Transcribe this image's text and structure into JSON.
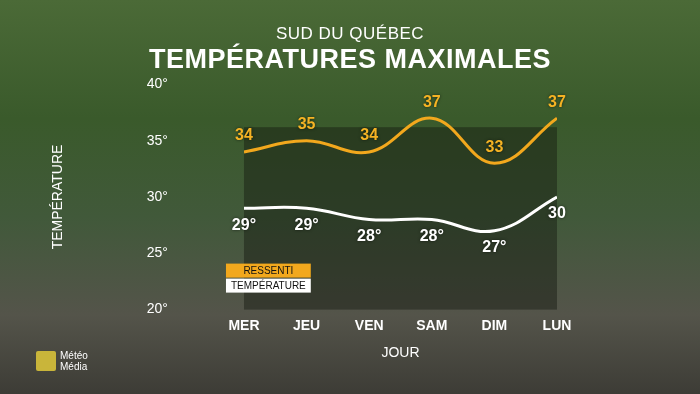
{
  "chart_data": {
    "type": "line",
    "subtitle": "SUD DU QUÉBEC",
    "title": "TEMPÉRATURES MAXIMALES",
    "x_label": "JOUR",
    "y_label": "TEMPÉRATURE",
    "categories": [
      "MER",
      "JEU",
      "VEN",
      "SAM",
      "DIM",
      "LUN"
    ],
    "series": [
      {
        "name": "RESSENTI",
        "color": "#f2a81d",
        "values": [
          34,
          35,
          34,
          37,
          33,
          37
        ]
      },
      {
        "name": "TEMPÉRATURE",
        "color": "#ffffff",
        "values": [
          29,
          29,
          28,
          28,
          27,
          30
        ],
        "value_labels": [
          "29°",
          "29°",
          "28°",
          "28°",
          "27°",
          "30"
        ]
      }
    ],
    "ylim": [
      20,
      40
    ],
    "yticks": [
      {
        "value": 20,
        "label": "20°"
      },
      {
        "value": 25,
        "label": "25°"
      },
      {
        "value": 30,
        "label": "30°"
      },
      {
        "value": 35,
        "label": "35°"
      },
      {
        "value": 40,
        "label": "40°"
      }
    ],
    "grid": false,
    "legend": "lower left",
    "data_labels": true,
    "annotations": [
      "Météo Média"
    ]
  }
}
